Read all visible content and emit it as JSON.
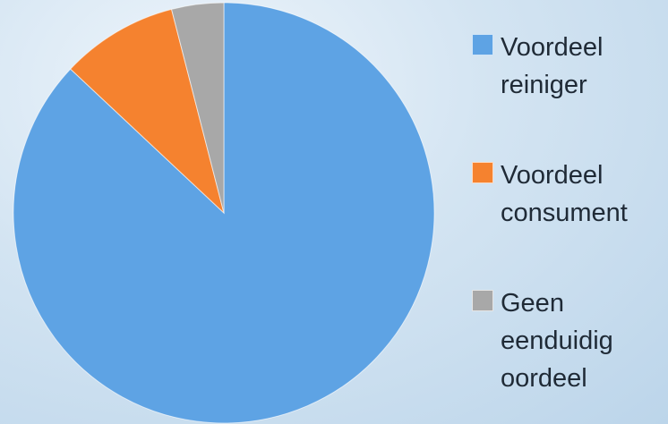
{
  "chart_data": {
    "type": "pie",
    "categories": [
      "Voordeel reiniger",
      "Voordeel consument",
      "Geen eenduidig oordeel"
    ],
    "values": [
      87,
      9,
      4
    ],
    "colors": [
      "#5ea3e4",
      "#f5822f",
      "#a8a8a8"
    ],
    "legend": "right"
  }
}
